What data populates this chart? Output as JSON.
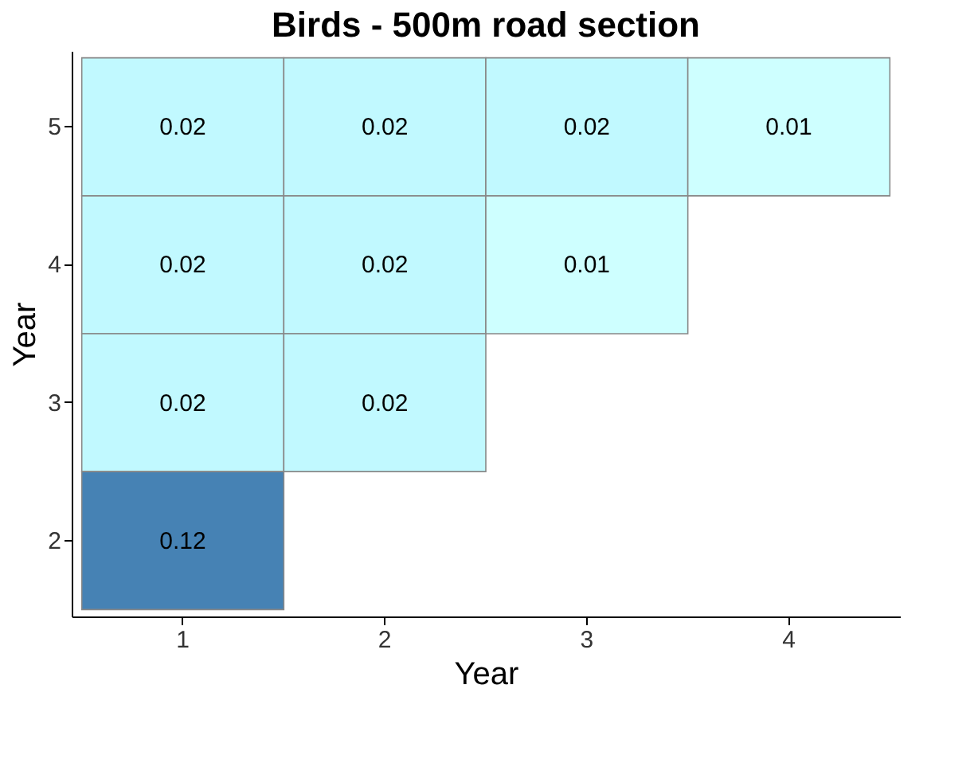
{
  "chart_data": {
    "type": "heatmap",
    "title": "Birds - 500m road section",
    "xlabel": "Year",
    "ylabel": "Year",
    "categories": [
      "1",
      "2",
      "3",
      "4"
    ],
    "y_categories": [
      "5",
      "4",
      "3",
      "2"
    ],
    "cells": [
      [
        0.02,
        0.02,
        0.02,
        0.01
      ],
      [
        0.02,
        0.02,
        0.01,
        null
      ],
      [
        0.02,
        0.02,
        null,
        null
      ],
      [
        0.12,
        null,
        null,
        null
      ]
    ],
    "data_labels": true,
    "grid": false,
    "legend": false
  }
}
